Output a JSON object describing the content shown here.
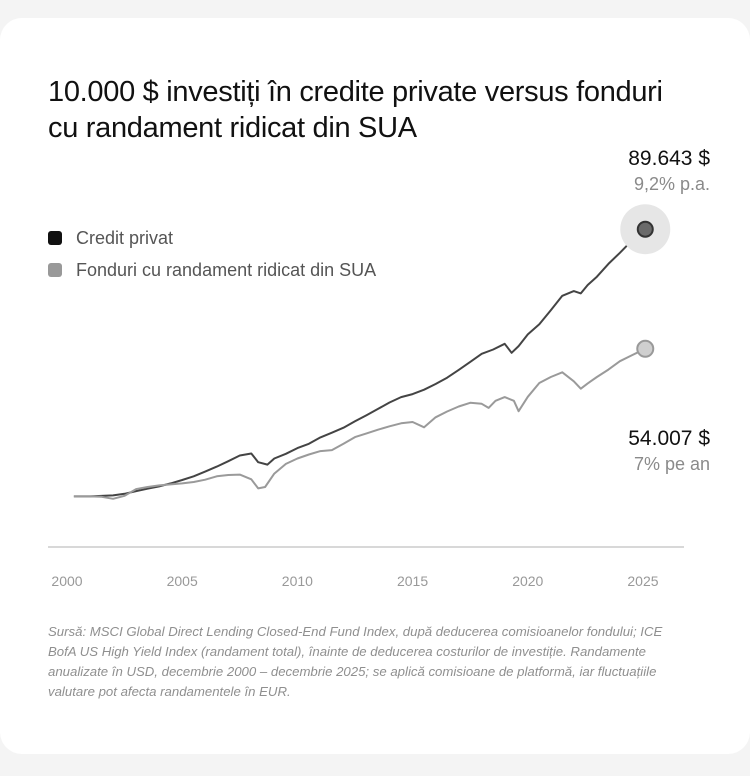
{
  "title": "10.000 $ investiți în credite private versus fonduri cu randament ridicat din SUA",
  "colors": {
    "private_credit": "#444444",
    "high_yield": "#9a9a9a",
    "axis": "#cccccc",
    "tick_text": "#999999"
  },
  "chart_data": {
    "type": "line",
    "title": "10.000 $ investiți în credite private versus fonduri cu randament ridicat din SUA",
    "xlabel": "",
    "ylabel": "",
    "x_ticks": [
      "2000",
      "2005",
      "2010",
      "2015",
      "2020",
      "2025"
    ],
    "xlim": [
      2000,
      2026
    ],
    "ylim": [
      0,
      90000
    ],
    "grid": false,
    "legend_position": "top-left",
    "series": [
      {
        "name": "Credit privat",
        "end_value": "89.643 $",
        "end_rate": "9,2% p.a.",
        "x": [
          2000.3,
          2001,
          2002,
          2002.5,
          2003,
          2003.5,
          2004,
          2004.5,
          2005,
          2005.5,
          2006,
          2006.5,
          2007,
          2007.5,
          2008,
          2008.3,
          2008.7,
          2009,
          2009.5,
          2010,
          2010.5,
          2011,
          2011.5,
          2012,
          2012.5,
          2013,
          2013.5,
          2014,
          2014.5,
          2015,
          2015.5,
          2016,
          2016.5,
          2017,
          2017.5,
          2018,
          2018.5,
          2019,
          2019.3,
          2019.6,
          2020,
          2020.5,
          2021,
          2021.5,
          2022,
          2022.3,
          2022.6,
          2023,
          2023.5,
          2024,
          2024.5,
          2025.1
        ],
        "y": [
          10000,
          10000,
          10300,
          10800,
          11600,
          12300,
          13000,
          13900,
          14900,
          16000,
          17400,
          18900,
          20500,
          22200,
          22800,
          20200,
          19500,
          21300,
          22700,
          24400,
          25700,
          27600,
          29000,
          30500,
          32400,
          34200,
          36100,
          38000,
          39600,
          40500,
          41800,
          43500,
          45400,
          47700,
          50100,
          52500,
          53800,
          55500,
          52800,
          54800,
          58300,
          61300,
          65500,
          69800,
          71200,
          70500,
          73000,
          75500,
          79300,
          82600,
          86100,
          89643
        ]
      },
      {
        "name": "Fonduri cu randament ridicat din SUA",
        "end_value": "54.007 $",
        "end_rate": "7% pe an",
        "x": [
          2000.3,
          2001,
          2001.5,
          2002,
          2002.5,
          2003,
          2003.5,
          2004,
          2004.5,
          2005,
          2005.5,
          2006,
          2006.5,
          2007,
          2007.5,
          2008,
          2008.3,
          2008.6,
          2009,
          2009.5,
          2010,
          2010.5,
          2011,
          2011.5,
          2012,
          2012.5,
          2013,
          2013.5,
          2014,
          2014.5,
          2015,
          2015.5,
          2016,
          2016.5,
          2017,
          2017.5,
          2018,
          2018.3,
          2018.6,
          2019,
          2019.4,
          2019.6,
          2020,
          2020.5,
          2021,
          2021.5,
          2022,
          2022.3,
          2022.6,
          2023,
          2023.5,
          2024,
          2024.5,
          2025.1
        ],
        "y": [
          10000,
          10000,
          9900,
          9300,
          10200,
          12200,
          12800,
          13300,
          13600,
          13900,
          14300,
          15000,
          16000,
          16400,
          16500,
          15100,
          12400,
          12800,
          16800,
          19700,
          21300,
          22500,
          23500,
          23800,
          25700,
          27700,
          28800,
          29900,
          30900,
          31800,
          32200,
          30600,
          33600,
          35300,
          36800,
          37900,
          37600,
          36400,
          38500,
          39600,
          38500,
          35400,
          39700,
          43800,
          45600,
          47000,
          44300,
          42100,
          43700,
          45600,
          47800,
          50300,
          52000,
          54007
        ]
      }
    ]
  },
  "source": "Sursă: MSCI Global Direct Lending Closed-End Fund Index, după deducerea comisioanelor fondului; ICE BofA US High Yield Index (randament total), înainte de deducerea costurilor de investiție. Randamente anualizate în USD, decembrie 2000 – decembrie 2025; se aplică comisioane de platformă, iar fluctuațiile valutare pot afecta randamentele în EUR."
}
